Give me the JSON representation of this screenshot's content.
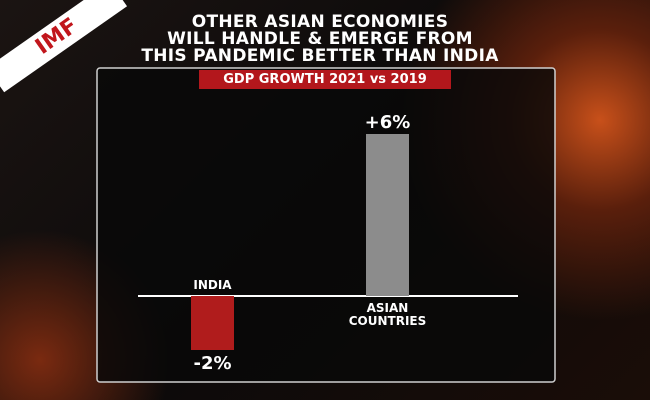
{
  "chart_data": {
    "type": "bar",
    "badge": "IMF",
    "title": [
      "OTHER ASIAN ECONOMIES",
      "WILL HANDLE & EMERGE FROM",
      "THIS PANDEMIC BETTER THAN INDIA"
    ],
    "subtitle": "GDP GROWTH 2021 vs 2019",
    "categories": [
      "INDIA",
      "ASIAN COUNTRIES"
    ],
    "values": [
      -2,
      6
    ],
    "value_labels": [
      "-2%",
      "+6%"
    ],
    "colors": [
      "#b01c1c",
      "#8c8c8c"
    ]
  }
}
